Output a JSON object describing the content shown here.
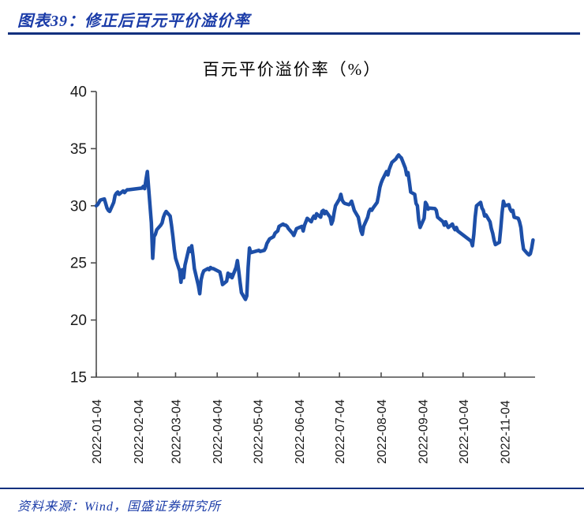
{
  "header": {
    "text": "图表39：修正后百元平价溢价率",
    "color": "#1B3CA8",
    "rule_color": "#10307E"
  },
  "footer": {
    "text": "资料来源：Wind，国盛证券研究所",
    "color": "#1B3CA8",
    "rule_color": "#10307E"
  },
  "chart_data": {
    "type": "line",
    "title": "百元平价溢价率（%）",
    "xlabel": "",
    "ylabel": "",
    "ylim": [
      15,
      40
    ],
    "y_ticks": [
      15,
      20,
      25,
      30,
      35,
      40
    ],
    "x_tick_labels": [
      "2022-01-04",
      "2022-02-04",
      "2022-03-04",
      "2022-04-04",
      "2022-05-04",
      "2022-06-04",
      "2022-07-04",
      "2022-08-04",
      "2022-09-04",
      "2022-10-04",
      "2022-11-04"
    ],
    "x_range": [
      "2022-01-04",
      "2022-11-25"
    ],
    "grid": false,
    "legend": "none",
    "line_color": "#1D4FA8",
    "axis_color": "#4D4D4D",
    "tick_label_color": "#1A1A1A",
    "series": [
      {
        "name": "百元平价溢价率(%)",
        "points": [
          [
            "2022-01-04",
            30.0
          ],
          [
            "2022-01-05",
            30.1
          ],
          [
            "2022-01-06",
            30.3
          ],
          [
            "2022-01-07",
            30.5
          ],
          [
            "2022-01-10",
            30.6
          ],
          [
            "2022-01-11",
            30.2
          ],
          [
            "2022-01-12",
            29.8
          ],
          [
            "2022-01-13",
            29.6
          ],
          [
            "2022-01-14",
            29.5
          ],
          [
            "2022-01-17",
            30.3
          ],
          [
            "2022-01-18",
            30.9
          ],
          [
            "2022-01-19",
            31.1
          ],
          [
            "2022-01-20",
            31.2
          ],
          [
            "2022-01-21",
            31.0
          ],
          [
            "2022-01-24",
            31.3
          ],
          [
            "2022-01-25",
            31.15
          ],
          [
            "2022-01-26",
            31.3
          ],
          [
            "2022-01-27",
            31.4
          ],
          [
            "2022-01-28",
            31.4
          ],
          [
            "2022-02-07",
            31.55
          ],
          [
            "2022-02-08",
            31.7
          ],
          [
            "2022-02-09",
            31.5
          ],
          [
            "2022-02-10",
            32.3
          ],
          [
            "2022-02-11",
            33.0
          ],
          [
            "2022-02-14",
            28.5
          ],
          [
            "2022-02-15",
            25.4
          ],
          [
            "2022-02-16",
            27.3
          ],
          [
            "2022-02-17",
            27.5
          ],
          [
            "2022-02-18",
            27.9
          ],
          [
            "2022-02-21",
            28.3
          ],
          [
            "2022-02-22",
            28.5
          ],
          [
            "2022-02-23",
            29.0
          ],
          [
            "2022-02-24",
            29.3
          ],
          [
            "2022-02-25",
            29.5
          ],
          [
            "2022-02-28",
            29.1
          ],
          [
            "2022-03-01",
            28.3
          ],
          [
            "2022-03-02",
            27.3
          ],
          [
            "2022-03-03",
            26.2
          ],
          [
            "2022-03-04",
            25.4
          ],
          [
            "2022-03-07",
            24.3
          ],
          [
            "2022-03-08",
            23.3
          ],
          [
            "2022-03-09",
            24.4
          ],
          [
            "2022-03-10",
            23.7
          ],
          [
            "2022-03-11",
            24.8
          ],
          [
            "2022-03-14",
            26.3
          ],
          [
            "2022-03-15",
            26.0
          ],
          [
            "2022-03-16",
            26.5
          ],
          [
            "2022-03-17",
            25.6
          ],
          [
            "2022-03-18",
            24.5
          ],
          [
            "2022-03-21",
            23.0
          ],
          [
            "2022-03-22",
            22.3
          ],
          [
            "2022-03-23",
            23.5
          ],
          [
            "2022-03-24",
            24.0
          ],
          [
            "2022-03-25",
            24.3
          ],
          [
            "2022-03-28",
            24.5
          ],
          [
            "2022-03-29",
            24.4
          ],
          [
            "2022-03-30",
            24.6
          ],
          [
            "2022-03-31",
            24.5
          ],
          [
            "2022-04-01",
            24.5
          ],
          [
            "2022-04-06",
            24.2
          ],
          [
            "2022-04-07",
            23.7
          ],
          [
            "2022-04-08",
            23.1
          ],
          [
            "2022-04-11",
            23.4
          ],
          [
            "2022-04-12",
            24.1
          ],
          [
            "2022-04-13",
            23.8
          ],
          [
            "2022-04-14",
            24.0
          ],
          [
            "2022-04-15",
            23.7
          ],
          [
            "2022-04-18",
            24.6
          ],
          [
            "2022-04-19",
            25.2
          ],
          [
            "2022-04-20",
            24.3
          ],
          [
            "2022-04-21",
            23.3
          ],
          [
            "2022-04-22",
            22.4
          ],
          [
            "2022-04-25",
            21.8
          ],
          [
            "2022-04-26",
            22.1
          ],
          [
            "2022-04-27",
            24.6
          ],
          [
            "2022-04-28",
            26.3
          ],
          [
            "2022-04-29",
            25.9
          ],
          [
            "2022-05-05",
            26.1
          ],
          [
            "2022-05-06",
            26.0
          ],
          [
            "2022-05-09",
            26.1
          ],
          [
            "2022-05-10",
            26.3
          ],
          [
            "2022-05-11",
            26.7
          ],
          [
            "2022-05-12",
            26.9
          ],
          [
            "2022-05-13",
            27.1
          ],
          [
            "2022-05-16",
            27.3
          ],
          [
            "2022-05-17",
            27.6
          ],
          [
            "2022-05-18",
            27.7
          ],
          [
            "2022-05-19",
            27.8
          ],
          [
            "2022-05-20",
            28.2
          ],
          [
            "2022-05-23",
            28.4
          ],
          [
            "2022-05-24",
            28.3
          ],
          [
            "2022-05-25",
            28.3
          ],
          [
            "2022-05-26",
            28.2
          ],
          [
            "2022-05-27",
            28.0
          ],
          [
            "2022-05-30",
            27.6
          ],
          [
            "2022-05-31",
            27.4
          ],
          [
            "2022-06-01",
            27.7
          ],
          [
            "2022-06-02",
            28.0
          ],
          [
            "2022-06-06",
            28.2
          ],
          [
            "2022-06-07",
            27.8
          ],
          [
            "2022-06-08",
            28.3
          ],
          [
            "2022-06-09",
            28.6
          ],
          [
            "2022-06-10",
            28.9
          ],
          [
            "2022-06-13",
            28.6
          ],
          [
            "2022-06-14",
            28.9
          ],
          [
            "2022-06-15",
            29.1
          ],
          [
            "2022-06-16",
            28.9
          ],
          [
            "2022-06-17",
            29.3
          ],
          [
            "2022-06-20",
            29.0
          ],
          [
            "2022-06-21",
            29.5
          ],
          [
            "2022-06-22",
            29.6
          ],
          [
            "2022-06-23",
            29.3
          ],
          [
            "2022-06-24",
            29.5
          ],
          [
            "2022-06-27",
            29.0
          ],
          [
            "2022-06-28",
            28.4
          ],
          [
            "2022-06-29",
            28.7
          ],
          [
            "2022-06-30",
            29.4
          ],
          [
            "2022-07-01",
            30.0
          ],
          [
            "2022-07-04",
            30.6
          ],
          [
            "2022-07-05",
            31.0
          ],
          [
            "2022-07-06",
            30.5
          ],
          [
            "2022-07-07",
            30.3
          ],
          [
            "2022-07-08",
            30.2
          ],
          [
            "2022-07-11",
            30.1
          ],
          [
            "2022-07-12",
            30.2
          ],
          [
            "2022-07-13",
            30.4
          ],
          [
            "2022-07-14",
            30.0
          ],
          [
            "2022-07-15",
            29.6
          ],
          [
            "2022-07-18",
            29.0
          ],
          [
            "2022-07-19",
            28.4
          ],
          [
            "2022-07-20",
            27.8
          ],
          [
            "2022-07-21",
            27.5
          ],
          [
            "2022-07-22",
            28.2
          ],
          [
            "2022-07-25",
            29.0
          ],
          [
            "2022-07-26",
            29.5
          ],
          [
            "2022-07-27",
            29.7
          ],
          [
            "2022-07-28",
            29.6
          ],
          [
            "2022-07-29",
            29.8
          ],
          [
            "2022-08-01",
            30.3
          ],
          [
            "2022-08-02",
            30.9
          ],
          [
            "2022-08-03",
            31.6
          ],
          [
            "2022-08-04",
            32.0
          ],
          [
            "2022-08-05",
            32.3
          ],
          [
            "2022-08-08",
            33.0
          ],
          [
            "2022-08-09",
            32.7
          ],
          [
            "2022-08-10",
            33.2
          ],
          [
            "2022-08-11",
            33.5
          ],
          [
            "2022-08-12",
            33.8
          ],
          [
            "2022-08-15",
            34.1
          ],
          [
            "2022-08-16",
            34.3
          ],
          [
            "2022-08-17",
            34.45
          ],
          [
            "2022-08-18",
            34.3
          ],
          [
            "2022-08-19",
            34.2
          ],
          [
            "2022-08-22",
            33.3
          ],
          [
            "2022-08-23",
            32.7
          ],
          [
            "2022-08-24",
            32.9
          ],
          [
            "2022-08-25",
            32.1
          ],
          [
            "2022-08-26",
            31.2
          ],
          [
            "2022-08-29",
            31.0
          ],
          [
            "2022-08-30",
            30.2
          ],
          [
            "2022-08-31",
            30.0
          ],
          [
            "2022-09-01",
            28.7
          ],
          [
            "2022-09-02",
            28.1
          ],
          [
            "2022-09-05",
            28.9
          ],
          [
            "2022-09-06",
            30.3
          ],
          [
            "2022-09-07",
            30.1
          ],
          [
            "2022-09-08",
            29.7
          ],
          [
            "2022-09-09",
            29.8
          ],
          [
            "2022-09-13",
            29.75
          ],
          [
            "2022-09-14",
            29.6
          ],
          [
            "2022-09-15",
            29.0
          ],
          [
            "2022-09-16",
            28.9
          ],
          [
            "2022-09-19",
            28.6
          ],
          [
            "2022-09-20",
            28.3
          ],
          [
            "2022-09-21",
            28.6
          ],
          [
            "2022-09-22",
            28.3
          ],
          [
            "2022-09-23",
            28.1
          ],
          [
            "2022-09-26",
            28.4
          ],
          [
            "2022-09-27",
            28.1
          ],
          [
            "2022-09-28",
            27.9
          ],
          [
            "2022-09-29",
            28.1
          ],
          [
            "2022-09-30",
            27.8
          ],
          [
            "2022-10-10",
            26.9
          ],
          [
            "2022-10-11",
            26.5
          ],
          [
            "2022-10-12",
            27.5
          ],
          [
            "2022-10-13",
            29.0
          ],
          [
            "2022-10-14",
            30.0
          ],
          [
            "2022-10-17",
            30.3
          ],
          [
            "2022-10-18",
            29.8
          ],
          [
            "2022-10-19",
            29.6
          ],
          [
            "2022-10-20",
            29.1
          ],
          [
            "2022-10-21",
            29.2
          ],
          [
            "2022-10-24",
            28.6
          ],
          [
            "2022-10-25",
            28.0
          ],
          [
            "2022-10-26",
            27.6
          ],
          [
            "2022-10-27",
            27.0
          ],
          [
            "2022-10-28",
            26.6
          ],
          [
            "2022-10-31",
            26.8
          ],
          [
            "2022-11-01",
            28.0
          ],
          [
            "2022-11-02",
            29.4
          ],
          [
            "2022-11-03",
            30.4
          ],
          [
            "2022-11-04",
            30.0
          ],
          [
            "2022-11-07",
            30.1
          ],
          [
            "2022-11-08",
            29.7
          ],
          [
            "2022-11-09",
            29.5
          ],
          [
            "2022-11-10",
            29.6
          ],
          [
            "2022-11-11",
            29.0
          ],
          [
            "2022-11-14",
            28.9
          ],
          [
            "2022-11-15",
            28.6
          ],
          [
            "2022-11-16",
            28.1
          ],
          [
            "2022-11-17",
            27.0
          ],
          [
            "2022-11-18",
            26.2
          ],
          [
            "2022-11-21",
            25.8
          ],
          [
            "2022-11-22",
            25.7
          ],
          [
            "2022-11-23",
            25.8
          ],
          [
            "2022-11-24",
            26.3
          ],
          [
            "2022-11-25",
            27.0
          ]
        ]
      }
    ]
  }
}
